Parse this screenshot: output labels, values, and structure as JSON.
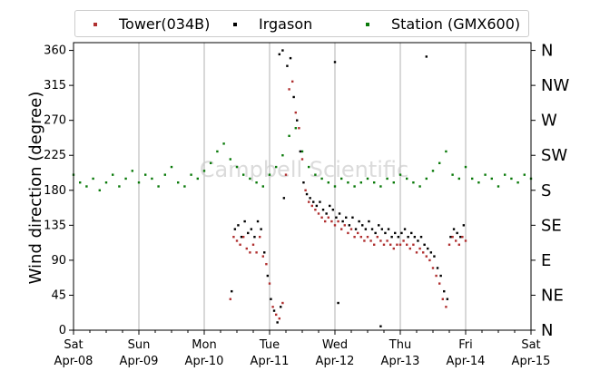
{
  "chart_data": {
    "type": "scatter",
    "ylabel": "Wind direction (degree)",
    "xlabel": "",
    "ylim": [
      0,
      370
    ],
    "yticks": [
      0,
      45,
      90,
      135,
      180,
      225,
      270,
      315,
      360
    ],
    "compass_ticks": [
      "N",
      "NE",
      "E",
      "SE",
      "S",
      "SW",
      "W",
      "NW",
      "N"
    ],
    "x_range_days": [
      "2017-04-08",
      "2017-04-15"
    ],
    "xticks": [
      {
        "day": "Sat",
        "date": "Apr-08"
      },
      {
        "day": "Sun",
        "date": "Apr-09"
      },
      {
        "day": "Mon",
        "date": "Apr-10"
      },
      {
        "day": "Tue",
        "date": "Apr-11"
      },
      {
        "day": "Wed",
        "date": "Apr-12"
      },
      {
        "day": "Thu",
        "date": "Apr-13"
      },
      {
        "day": "Fri",
        "date": "Apr-14"
      },
      {
        "day": "Sat",
        "date": "Apr-15"
      }
    ],
    "grid": "vertical",
    "legend_position": "top",
    "watermark": "Campbell Scientific",
    "series": [
      {
        "name": "Tower(034B)",
        "color": "#b03030",
        "points": [
          [
            2.4,
            40
          ],
          [
            2.45,
            120
          ],
          [
            2.5,
            115
          ],
          [
            2.55,
            110
          ],
          [
            2.6,
            120
          ],
          [
            2.65,
            105
          ],
          [
            2.7,
            100
          ],
          [
            2.75,
            110
          ],
          [
            2.8,
            100
          ],
          [
            2.85,
            120
          ],
          [
            2.9,
            95
          ],
          [
            2.95,
            85
          ],
          [
            3.0,
            60
          ],
          [
            3.05,
            30
          ],
          [
            3.1,
            20
          ],
          [
            3.15,
            15
          ],
          [
            3.2,
            35
          ],
          [
            3.25,
            200
          ],
          [
            3.3,
            310
          ],
          [
            3.35,
            320
          ],
          [
            3.4,
            280
          ],
          [
            3.45,
            260
          ],
          [
            3.5,
            220
          ],
          [
            3.55,
            180
          ],
          [
            3.6,
            165
          ],
          [
            3.65,
            160
          ],
          [
            3.7,
            155
          ],
          [
            3.75,
            150
          ],
          [
            3.8,
            145
          ],
          [
            3.85,
            140
          ],
          [
            3.9,
            145
          ],
          [
            3.95,
            140
          ],
          [
            4.0,
            135
          ],
          [
            4.05,
            140
          ],
          [
            4.1,
            130
          ],
          [
            4.15,
            135
          ],
          [
            4.2,
            125
          ],
          [
            4.25,
            130
          ],
          [
            4.3,
            120
          ],
          [
            4.35,
            125
          ],
          [
            4.4,
            120
          ],
          [
            4.45,
            115
          ],
          [
            4.5,
            120
          ],
          [
            4.55,
            115
          ],
          [
            4.6,
            110
          ],
          [
            4.65,
            120
          ],
          [
            4.7,
            115
          ],
          [
            4.75,
            110
          ],
          [
            4.8,
            115
          ],
          [
            4.85,
            110
          ],
          [
            4.9,
            105
          ],
          [
            4.95,
            110
          ],
          [
            5.0,
            110
          ],
          [
            5.05,
            115
          ],
          [
            5.1,
            110
          ],
          [
            5.15,
            105
          ],
          [
            5.2,
            110
          ],
          [
            5.25,
            100
          ],
          [
            5.3,
            105
          ],
          [
            5.35,
            100
          ],
          [
            5.4,
            95
          ],
          [
            5.45,
            90
          ],
          [
            5.5,
            80
          ],
          [
            5.55,
            70
          ],
          [
            5.6,
            60
          ],
          [
            5.65,
            40
          ],
          [
            5.7,
            30
          ],
          [
            5.75,
            110
          ],
          [
            5.8,
            120
          ],
          [
            5.85,
            115
          ],
          [
            5.9,
            110
          ],
          [
            5.95,
            120
          ],
          [
            6.0,
            115
          ]
        ]
      },
      {
        "name": "Irgason",
        "color": "#000000",
        "points": [
          [
            2.42,
            50
          ],
          [
            2.47,
            130
          ],
          [
            2.52,
            135
          ],
          [
            2.57,
            120
          ],
          [
            2.62,
            140
          ],
          [
            2.67,
            125
          ],
          [
            2.72,
            130
          ],
          [
            2.77,
            120
          ],
          [
            2.82,
            140
          ],
          [
            2.87,
            130
          ],
          [
            2.92,
            100
          ],
          [
            2.97,
            70
          ],
          [
            3.02,
            40
          ],
          [
            3.07,
            25
          ],
          [
            3.12,
            10
          ],
          [
            3.17,
            30
          ],
          [
            3.22,
            170
          ],
          [
            3.27,
            340
          ],
          [
            3.32,
            350
          ],
          [
            3.37,
            300
          ],
          [
            3.42,
            270
          ],
          [
            3.47,
            230
          ],
          [
            3.52,
            190
          ],
          [
            3.57,
            175
          ],
          [
            3.62,
            170
          ],
          [
            3.67,
            165
          ],
          [
            3.72,
            160
          ],
          [
            3.77,
            165
          ],
          [
            3.82,
            155
          ],
          [
            3.87,
            150
          ],
          [
            3.92,
            160
          ],
          [
            3.97,
            155
          ],
          [
            4.02,
            145
          ],
          [
            4.07,
            150
          ],
          [
            4.12,
            140
          ],
          [
            4.17,
            145
          ],
          [
            4.22,
            135
          ],
          [
            4.27,
            145
          ],
          [
            4.32,
            130
          ],
          [
            4.37,
            140
          ],
          [
            4.42,
            135
          ],
          [
            4.47,
            130
          ],
          [
            4.52,
            140
          ],
          [
            4.57,
            130
          ],
          [
            4.62,
            125
          ],
          [
            4.67,
            135
          ],
          [
            4.72,
            130
          ],
          [
            4.77,
            125
          ],
          [
            4.82,
            130
          ],
          [
            4.87,
            120
          ],
          [
            4.92,
            125
          ],
          [
            4.97,
            120
          ],
          [
            5.02,
            125
          ],
          [
            5.07,
            130
          ],
          [
            5.12,
            120
          ],
          [
            5.17,
            125
          ],
          [
            5.22,
            120
          ],
          [
            5.27,
            115
          ],
          [
            5.32,
            120
          ],
          [
            5.37,
            110
          ],
          [
            5.42,
            105
          ],
          [
            5.47,
            100
          ],
          [
            5.52,
            95
          ],
          [
            5.57,
            80
          ],
          [
            5.62,
            70
          ],
          [
            5.67,
            50
          ],
          [
            5.72,
            40
          ],
          [
            5.77,
            120
          ],
          [
            5.82,
            130
          ],
          [
            5.87,
            125
          ],
          [
            5.92,
            120
          ],
          [
            5.97,
            135
          ],
          [
            4.0,
            345
          ],
          [
            3.15,
            355
          ],
          [
            3.2,
            360
          ],
          [
            5.4,
            352
          ],
          [
            4.05,
            35
          ],
          [
            4.7,
            5
          ]
        ]
      },
      {
        "name": "Station (GMX600)",
        "color": "#0a7a0a",
        "points": [
          [
            0.0,
            200
          ],
          [
            0.1,
            190
          ],
          [
            0.2,
            185
          ],
          [
            0.3,
            195
          ],
          [
            0.4,
            180
          ],
          [
            0.5,
            190
          ],
          [
            0.6,
            200
          ],
          [
            0.7,
            185
          ],
          [
            0.8,
            195
          ],
          [
            0.9,
            205
          ],
          [
            1.0,
            190
          ],
          [
            1.1,
            200
          ],
          [
            1.2,
            195
          ],
          [
            1.3,
            185
          ],
          [
            1.4,
            200
          ],
          [
            1.5,
            210
          ],
          [
            1.6,
            190
          ],
          [
            1.7,
            185
          ],
          [
            1.8,
            200
          ],
          [
            1.9,
            195
          ],
          [
            2.0,
            205
          ],
          [
            2.1,
            215
          ],
          [
            2.2,
            230
          ],
          [
            2.3,
            240
          ],
          [
            2.4,
            220
          ],
          [
            2.5,
            210
          ],
          [
            2.6,
            200
          ],
          [
            2.7,
            195
          ],
          [
            2.8,
            190
          ],
          [
            2.9,
            185
          ],
          [
            3.0,
            200
          ],
          [
            3.1,
            210
          ],
          [
            3.2,
            225
          ],
          [
            3.3,
            250
          ],
          [
            3.4,
            260
          ],
          [
            3.5,
            230
          ],
          [
            3.6,
            210
          ],
          [
            3.7,
            200
          ],
          [
            3.8,
            195
          ],
          [
            3.9,
            190
          ],
          [
            4.0,
            185
          ],
          [
            4.1,
            195
          ],
          [
            4.2,
            190
          ],
          [
            4.3,
            185
          ],
          [
            4.4,
            190
          ],
          [
            4.5,
            195
          ],
          [
            4.6,
            190
          ],
          [
            4.7,
            185
          ],
          [
            4.8,
            195
          ],
          [
            4.9,
            190
          ],
          [
            5.0,
            200
          ],
          [
            5.1,
            195
          ],
          [
            5.2,
            190
          ],
          [
            5.3,
            185
          ],
          [
            5.4,
            195
          ],
          [
            5.5,
            205
          ],
          [
            5.6,
            215
          ],
          [
            5.7,
            230
          ],
          [
            5.8,
            200
          ],
          [
            5.9,
            195
          ],
          [
            6.0,
            210
          ],
          [
            6.1,
            195
          ],
          [
            6.2,
            190
          ],
          [
            6.3,
            200
          ],
          [
            6.4,
            195
          ],
          [
            6.5,
            185
          ],
          [
            6.6,
            200
          ],
          [
            6.7,
            195
          ],
          [
            6.8,
            190
          ],
          [
            6.9,
            200
          ],
          [
            7.0,
            195
          ]
        ]
      }
    ]
  }
}
